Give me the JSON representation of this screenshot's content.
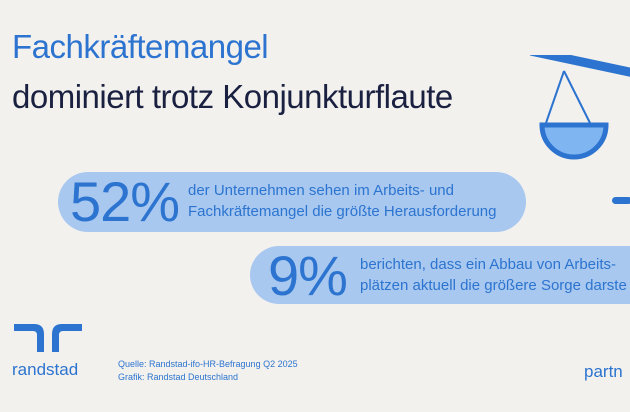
{
  "header": {
    "title_line1": "Fachkräftemangel",
    "title_line2": "dominiert trotz Konjunkturflaute"
  },
  "stats": [
    {
      "value": "52%",
      "line1": "der Unternehmen sehen im Arbeits- und",
      "line2": "Fachkräftemangel die größte Herausforderung"
    },
    {
      "value": "9%",
      "line1": "berichten, dass ein Abbau von Arbeits-",
      "line2": "plätzen aktuell die größere Sorge darste"
    }
  ],
  "footer": {
    "logo_text": "randstad",
    "source_line": "Quelle: Randstad-ifo-HR-Befragung Q2 2025",
    "graphic_line": "Grafik: Randstad Deutschland",
    "partner_text": "partn"
  },
  "colors": {
    "background": "#f3f1ee",
    "accent_blue": "#2c74cf",
    "dark_navy": "#1a2040",
    "pill_blue": "#a8c8f0",
    "scale_pan": "#7fb6f2"
  },
  "icons": [
    "balance-scale-icon",
    "randstad-logo-icon"
  ]
}
